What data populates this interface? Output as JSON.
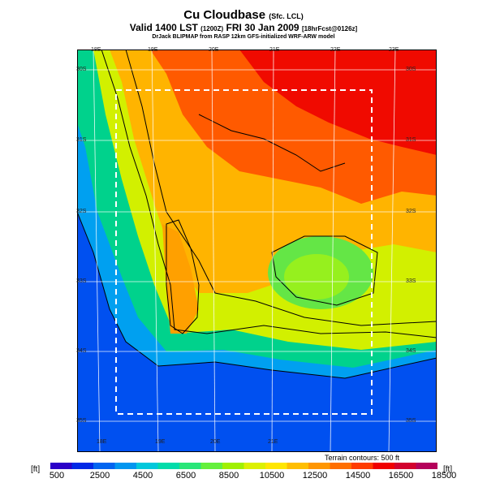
{
  "header": {
    "title": "Cu Cloudbase",
    "title_suffix": "(Sfc. LCL)",
    "valid": "Valid 1400 LST",
    "valid_code": "(1200Z)",
    "valid_date": "FRI 30 Jan 2009",
    "valid_fcst": "[18hrFcst@0126z]",
    "credit": "DrJack BLIPMAP from RASP 12km GFS-initialized WRF-ARW model"
  },
  "map": {
    "lon_labels_top": [
      "18E",
      "19E",
      "20E",
      "21E",
      "22E",
      "23E"
    ],
    "lon_labels_bottom": [
      "18E",
      "19E",
      "20E",
      "21E"
    ],
    "lat_labels_left": [
      "30S",
      "31S",
      "32S",
      "33S",
      "34S",
      "35S"
    ],
    "lat_labels_right": [
      "30S",
      "31S",
      "32S",
      "33S",
      "34S",
      "35S"
    ],
    "terrain_note": "Terrain contours: 500 ft"
  },
  "legend": {
    "unit_left": "[ft]",
    "unit_right": "[ft]",
    "ticks": [
      "500",
      "2500",
      "4500",
      "6500",
      "8500",
      "10500",
      "12500",
      "14500",
      "16500",
      "18500"
    ],
    "colors": [
      "#2a00c8",
      "#0028e6",
      "#0064f0",
      "#0096f0",
      "#00c8dc",
      "#00dcaa",
      "#28e678",
      "#64f03c",
      "#a0f000",
      "#dcf000",
      "#ffe600",
      "#ffbe00",
      "#ff9600",
      "#ff6e00",
      "#ff3c00",
      "#f00000",
      "#d2002d",
      "#b4005a"
    ]
  }
}
